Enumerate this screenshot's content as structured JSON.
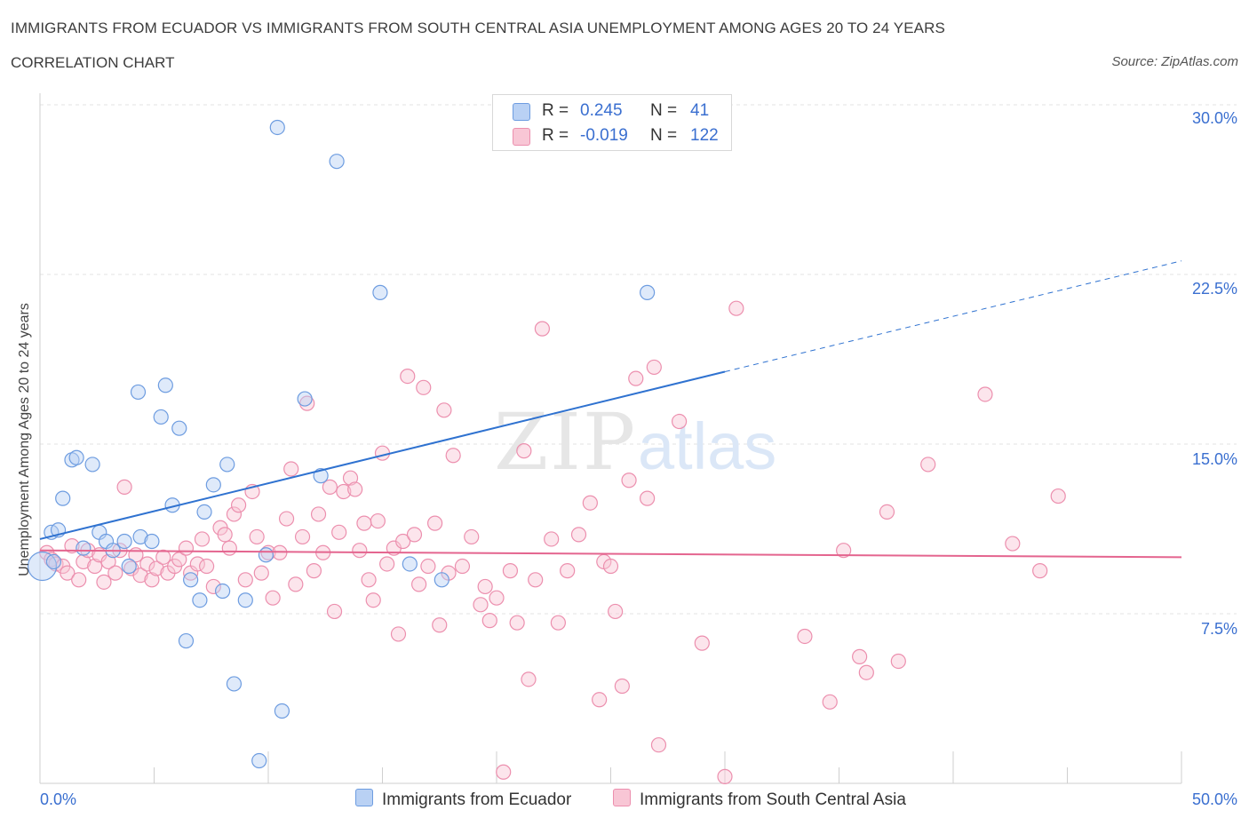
{
  "header": {
    "title": "IMMIGRANTS FROM ECUADOR VS IMMIGRANTS FROM SOUTH CENTRAL ASIA UNEMPLOYMENT AMONG AGES 20 TO 24 YEARS",
    "subtitle": "CORRELATION CHART",
    "source": "Source: ZipAtlas.com"
  },
  "watermark": {
    "zip": "ZIP",
    "atlas": "atlas"
  },
  "legend": {
    "rows": [
      {
        "r_label": "R =",
        "r_value": "0.245",
        "n_label": "N =",
        "n_value": "41",
        "color": "#a9c8f2"
      },
      {
        "r_label": "R =",
        "r_value": "-0.019",
        "n_label": "N =",
        "n_value": "122",
        "color": "#f7b8cb"
      }
    ]
  },
  "colors": {
    "ecuador_stroke": "#6d9ce0",
    "ecuador_fill": "#b9d1f4",
    "ecuador_line": "#2f72d0",
    "asia_stroke": "#ec8fae",
    "asia_fill": "#f8c6d5",
    "asia_line": "#e4658f"
  },
  "chart_data": {
    "type": "scatter",
    "title": "IMMIGRANTS FROM ECUADOR VS IMMIGRANTS FROM SOUTH CENTRAL ASIA UNEMPLOYMENT AMONG AGES 20 TO 24 YEARS",
    "ylabel": "Unemployment Among Ages 20 to 24 years",
    "xlim": [
      0,
      50
    ],
    "ylim": [
      0,
      30
    ],
    "x_tick_labels": [
      "0.0%",
      "50.0%"
    ],
    "y_tick_labels": [
      "7.5%",
      "15.0%",
      "22.5%",
      "30.0%"
    ],
    "y_ticks": [
      7.5,
      15,
      22.5,
      30
    ],
    "grid": true,
    "legend_position": "top-center",
    "series": [
      {
        "name": "Immigrants from Ecuador",
        "trend": {
          "x0": 0,
          "y0": 10.8,
          "x1": 30,
          "y1": 18.2,
          "dashed_to_x": 50,
          "dashed_to_y": 23.1
        },
        "points": [
          [
            0.1,
            9.6
          ],
          [
            0.5,
            11.1
          ],
          [
            0.8,
            11.2
          ],
          [
            0.6,
            9.8
          ],
          [
            1.0,
            12.6
          ],
          [
            1.4,
            14.3
          ],
          [
            1.6,
            14.4
          ],
          [
            2.3,
            14.1
          ],
          [
            1.9,
            10.4
          ],
          [
            2.6,
            11.1
          ],
          [
            2.9,
            10.7
          ],
          [
            3.2,
            10.3
          ],
          [
            3.7,
            10.7
          ],
          [
            3.9,
            9.6
          ],
          [
            4.4,
            10.9
          ],
          [
            4.9,
            10.7
          ],
          [
            4.3,
            17.3
          ],
          [
            5.3,
            16.2
          ],
          [
            5.5,
            17.6
          ],
          [
            5.8,
            12.3
          ],
          [
            6.1,
            15.7
          ],
          [
            6.6,
            9.0
          ],
          [
            7.0,
            8.1
          ],
          [
            7.2,
            12.0
          ],
          [
            7.6,
            13.2
          ],
          [
            8.0,
            8.5
          ],
          [
            8.2,
            14.1
          ],
          [
            8.5,
            4.4
          ],
          [
            9.0,
            8.1
          ],
          [
            6.4,
            6.3
          ],
          [
            9.6,
            1.0
          ],
          [
            9.9,
            10.1
          ],
          [
            10.4,
            29.0
          ],
          [
            10.6,
            3.2
          ],
          [
            11.6,
            17.0
          ],
          [
            12.3,
            13.6
          ],
          [
            13.0,
            27.5
          ],
          [
            14.9,
            21.7
          ],
          [
            16.2,
            9.7
          ],
          [
            17.6,
            9.0
          ],
          [
            26.6,
            21.7
          ]
        ]
      },
      {
        "name": "Immigrants from South Central Asia",
        "trend": {
          "x0": 0,
          "y0": 10.3,
          "x1": 50,
          "y1": 10.0
        },
        "points": [
          [
            0.3,
            10.2
          ],
          [
            0.5,
            9.9
          ],
          [
            0.7,
            9.7
          ],
          [
            1.0,
            9.6
          ],
          [
            1.2,
            9.3
          ],
          [
            1.4,
            10.5
          ],
          [
            1.7,
            9.0
          ],
          [
            1.9,
            9.8
          ],
          [
            2.1,
            10.3
          ],
          [
            2.4,
            9.6
          ],
          [
            2.6,
            10.1
          ],
          [
            2.8,
            8.9
          ],
          [
            3.0,
            9.8
          ],
          [
            3.3,
            9.3
          ],
          [
            3.5,
            10.3
          ],
          [
            3.7,
            13.1
          ],
          [
            4.0,
            9.5
          ],
          [
            4.2,
            10.1
          ],
          [
            4.4,
            9.2
          ],
          [
            4.7,
            9.7
          ],
          [
            4.9,
            9.0
          ],
          [
            5.1,
            9.5
          ],
          [
            5.4,
            10.0
          ],
          [
            5.6,
            9.3
          ],
          [
            5.9,
            9.6
          ],
          [
            6.1,
            9.9
          ],
          [
            6.4,
            10.4
          ],
          [
            6.6,
            9.3
          ],
          [
            6.9,
            9.7
          ],
          [
            7.1,
            10.8
          ],
          [
            7.3,
            9.6
          ],
          [
            7.6,
            8.7
          ],
          [
            7.9,
            11.3
          ],
          [
            8.1,
            11.0
          ],
          [
            8.3,
            10.4
          ],
          [
            8.5,
            11.9
          ],
          [
            8.7,
            12.3
          ],
          [
            9.0,
            9.0
          ],
          [
            9.3,
            12.9
          ],
          [
            9.5,
            10.9
          ],
          [
            9.7,
            9.3
          ],
          [
            10.0,
            10.2
          ],
          [
            10.2,
            8.2
          ],
          [
            10.5,
            10.2
          ],
          [
            10.8,
            11.7
          ],
          [
            11.0,
            13.9
          ],
          [
            11.2,
            8.8
          ],
          [
            11.5,
            10.9
          ],
          [
            11.7,
            16.8
          ],
          [
            12.0,
            9.4
          ],
          [
            12.2,
            11.9
          ],
          [
            12.4,
            10.2
          ],
          [
            12.7,
            13.1
          ],
          [
            12.9,
            7.6
          ],
          [
            13.1,
            11.1
          ],
          [
            13.3,
            12.9
          ],
          [
            13.6,
            13.5
          ],
          [
            13.8,
            13.0
          ],
          [
            14.0,
            10.3
          ],
          [
            14.2,
            11.5
          ],
          [
            14.4,
            9.0
          ],
          [
            14.6,
            8.1
          ],
          [
            14.8,
            11.6
          ],
          [
            15.0,
            14.6
          ],
          [
            15.2,
            9.7
          ],
          [
            15.5,
            10.4
          ],
          [
            15.7,
            6.6
          ],
          [
            15.9,
            10.7
          ],
          [
            16.1,
            18.0
          ],
          [
            16.4,
            11.0
          ],
          [
            16.6,
            8.8
          ],
          [
            16.8,
            17.5
          ],
          [
            17.0,
            9.6
          ],
          [
            17.3,
            11.5
          ],
          [
            17.5,
            7.0
          ],
          [
            17.7,
            16.5
          ],
          [
            17.9,
            9.3
          ],
          [
            18.1,
            14.5
          ],
          [
            18.5,
            9.6
          ],
          [
            18.9,
            10.9
          ],
          [
            19.3,
            7.9
          ],
          [
            19.5,
            8.7
          ],
          [
            19.7,
            7.2
          ],
          [
            20.0,
            8.2
          ],
          [
            20.3,
            0.5
          ],
          [
            20.6,
            9.4
          ],
          [
            20.9,
            7.1
          ],
          [
            21.2,
            14.7
          ],
          [
            21.4,
            4.6
          ],
          [
            21.7,
            9.0
          ],
          [
            22.0,
            20.1
          ],
          [
            22.4,
            10.8
          ],
          [
            22.7,
            7.1
          ],
          [
            23.1,
            9.4
          ],
          [
            23.6,
            11.0
          ],
          [
            24.1,
            12.4
          ],
          [
            24.5,
            3.7
          ],
          [
            24.7,
            9.8
          ],
          [
            25.0,
            9.6
          ],
          [
            25.2,
            7.6
          ],
          [
            25.5,
            4.3
          ],
          [
            25.8,
            13.4
          ],
          [
            26.1,
            17.9
          ],
          [
            26.6,
            12.6
          ],
          [
            26.9,
            18.4
          ],
          [
            27.1,
            1.7
          ],
          [
            28.0,
            16.0
          ],
          [
            29.0,
            6.2
          ],
          [
            30.0,
            0.3
          ],
          [
            30.5,
            21.0
          ],
          [
            33.5,
            6.5
          ],
          [
            34.6,
            3.6
          ],
          [
            35.2,
            10.3
          ],
          [
            35.9,
            5.6
          ],
          [
            36.2,
            4.9
          ],
          [
            37.1,
            12.0
          ],
          [
            37.6,
            5.4
          ],
          [
            38.9,
            14.1
          ],
          [
            41.4,
            17.2
          ],
          [
            42.6,
            10.6
          ],
          [
            43.8,
            9.4
          ],
          [
            44.6,
            12.7
          ]
        ]
      }
    ]
  },
  "x_axis": {
    "left_label": "0.0%",
    "right_label": "50.0%"
  }
}
